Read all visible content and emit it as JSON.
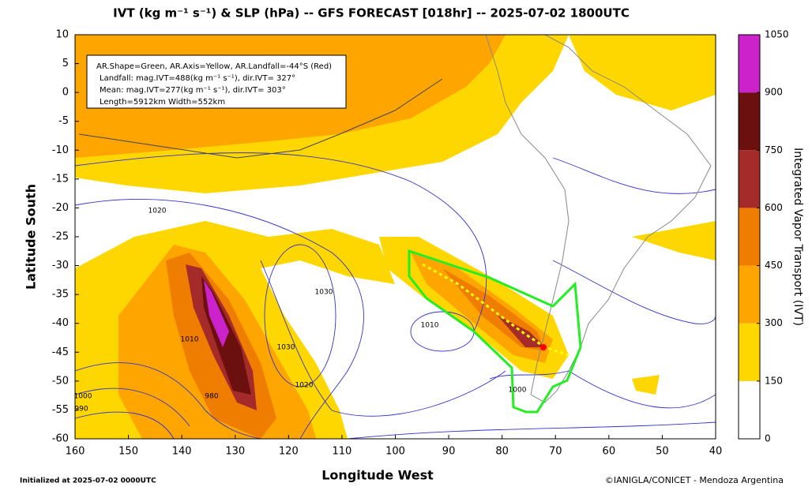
{
  "title": "IVT (kg m⁻¹ s⁻¹) & SLP (hPa) -- GFS FORECAST [018hr] -- 2025-07-02 1800UTC",
  "x_axis": {
    "label": "Longitude West",
    "lim": [
      160,
      40
    ],
    "ticks": [
      160,
      150,
      140,
      130,
      120,
      110,
      100,
      90,
      80,
      70,
      60,
      50,
      40
    ]
  },
  "y_axis": {
    "label": "Latitude South",
    "lim": [
      -60,
      10
    ],
    "ticks": [
      10,
      5,
      0,
      -5,
      -10,
      -15,
      -20,
      -25,
      -30,
      -35,
      -40,
      -45,
      -50,
      -55,
      -60
    ]
  },
  "colorbar": {
    "label": "Integrated Vapor Transport (IVT)",
    "ticks": [
      0,
      150,
      300,
      450,
      600,
      750,
      900,
      1050
    ],
    "colors": [
      "#ffffff",
      "#ffd700",
      "#ffa500",
      "#ee7d00",
      "#a52a2a",
      "#6b0f0f",
      "#cc22cc"
    ]
  },
  "info_box": {
    "lines": [
      "AR.Shape=Green, AR.Axis=Yellow, AR.Landfall=-44°S (Red)",
      "Landfall: mag.IVT=488(kg m⁻¹ s⁻¹), dir.IVT= 327°",
      "Mean: mag.IVT=277(kg m⁻¹ s⁻¹), dir.IVT= 303°",
      "Length=5912km   Width=552km"
    ]
  },
  "contour_labels": [
    1010,
    1020,
    1030,
    1000,
    990,
    980,
    1010,
    1020,
    1030,
    1000
  ],
  "footer": {
    "left": "Initialized at 2025-07-02 0000UTC",
    "right": "©IANIGLA/CONICET - Mendoza Argentina"
  }
}
